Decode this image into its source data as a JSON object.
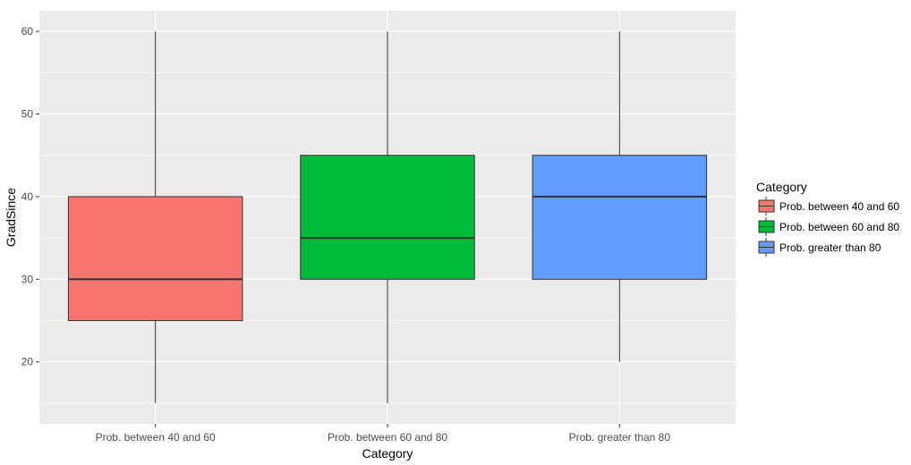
{
  "chart_data": {
    "type": "box",
    "xlabel": "Category",
    "ylabel": "GradSince",
    "ylim": [
      12.5,
      62.5
    ],
    "yticks": [
      20,
      30,
      40,
      50,
      60
    ],
    "grid": true,
    "legend": {
      "title": "Category",
      "placement": "right",
      "entries": [
        "Prob. between 40 and 60",
        "Prob. between 60 and 80",
        "Prob. greater than 80"
      ]
    },
    "categories": [
      "Prob. between 40 and 60",
      "Prob. between 60 and 80",
      "Prob. greater than 80"
    ],
    "boxes": [
      {
        "category": "Prob. between 40 and 60",
        "min": 15,
        "q1": 25,
        "median": 30,
        "q3": 40,
        "max": 60,
        "color": "#F8766D"
      },
      {
        "category": "Prob. between 60 and 80",
        "min": 15,
        "q1": 30,
        "median": 35,
        "q3": 45,
        "max": 60,
        "color": "#00BA38"
      },
      {
        "category": "Prob. greater than 80",
        "min": 20,
        "q1": 30,
        "median": 40,
        "q3": 45,
        "max": 60,
        "color": "#619CFF"
      }
    ],
    "panel_background": "#EBEBEB",
    "gridline_color": "#FFFFFF"
  }
}
